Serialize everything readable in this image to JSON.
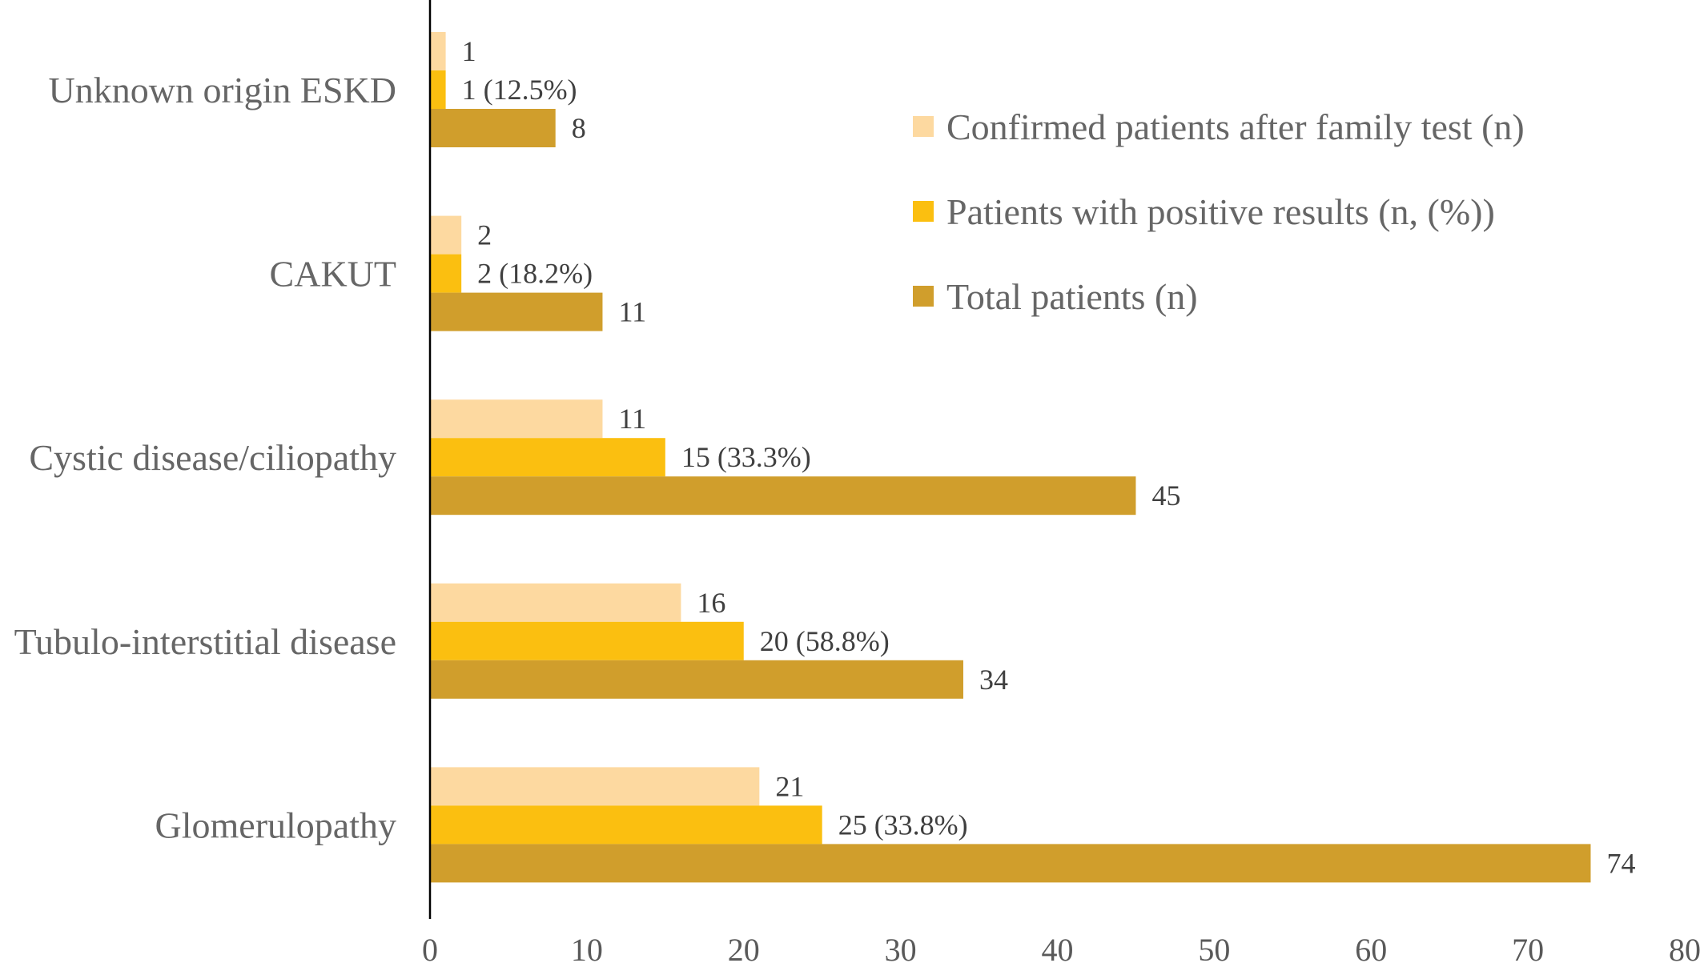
{
  "chart_data": {
    "type": "bar",
    "orientation": "horizontal",
    "categories": [
      "Unknown origin ESKD",
      "CAKUT",
      "Cystic disease/ciliopathy",
      "Tubulo-interstitial disease",
      "Glomerulopathy"
    ],
    "series": [
      {
        "name": "Confirmed patients after family test (n)",
        "color": "#fdd9a0",
        "values": [
          1,
          2,
          11,
          16,
          21
        ],
        "labels": [
          "1",
          "2",
          "11",
          "16",
          "21"
        ]
      },
      {
        "name": "Patients with positive results (n, (%))",
        "color": "#fbbf10",
        "values": [
          1,
          2,
          15,
          20,
          25
        ],
        "labels": [
          "1 (12.5%)",
          "2 (18.2%)",
          "15 (33.3%)",
          "20 (58.8%)",
          "25 (33.8%)"
        ]
      },
      {
        "name": "Total patients (n)",
        "color": "#d09e2c",
        "values": [
          8,
          11,
          45,
          34,
          74
        ],
        "labels": [
          "8",
          "11",
          "45",
          "34",
          "74"
        ]
      }
    ],
    "xlim": [
      0,
      80
    ],
    "xticks": [
      0,
      10,
      20,
      30,
      40,
      50,
      60,
      70,
      80
    ],
    "grid": false,
    "legend_position": "top-right",
    "title": "",
    "xlabel": "",
    "ylabel": ""
  }
}
